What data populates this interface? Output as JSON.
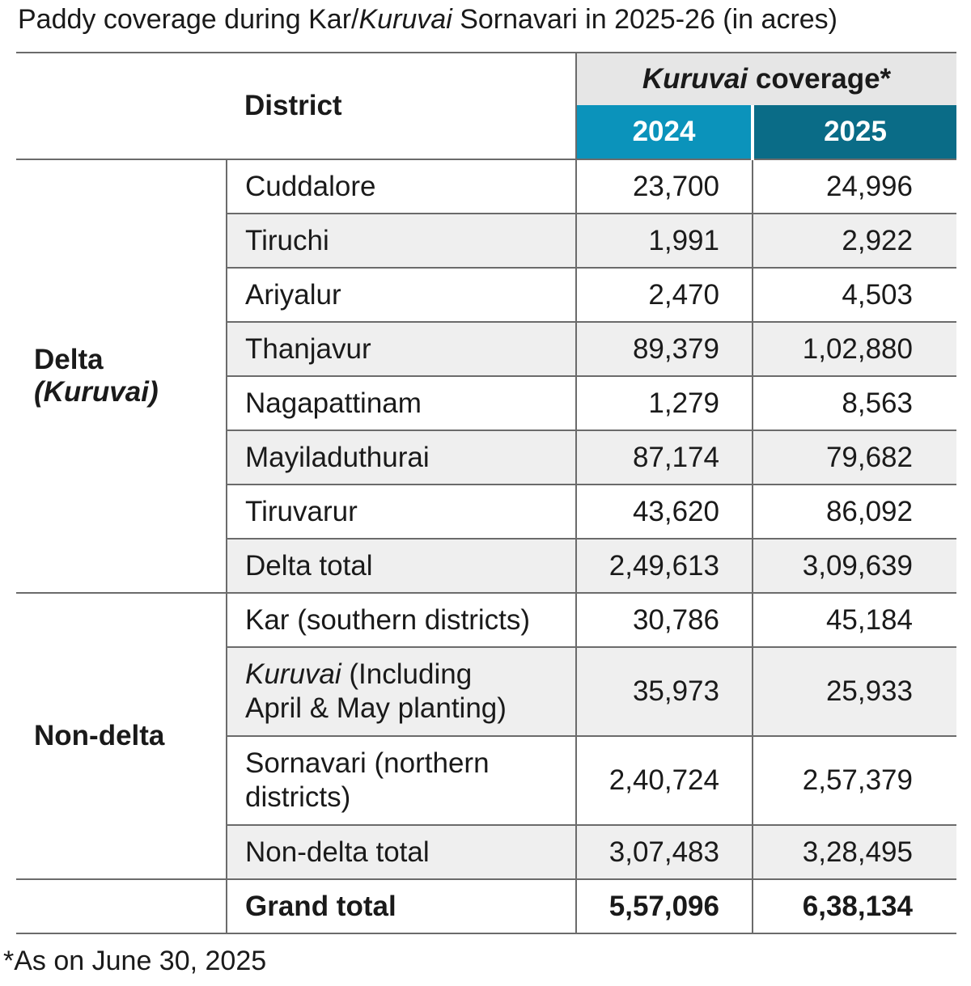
{
  "title": {
    "part1": "Paddy coverage during Kar/",
    "part2_italic": "Kuruvai",
    "part3": " Sornavari in 2025-26 (in acres)"
  },
  "header": {
    "district": "District",
    "coverage_italic": "Kuruvai",
    "coverage_rest": " coverage*",
    "year_2024": "2024",
    "year_2025": "2025"
  },
  "colors": {
    "year_2024_bg": "#0b93bb",
    "year_2025_bg": "#0a6c87",
    "header_bg": "#e6e6e6",
    "zebra": "#efefef"
  },
  "groups": {
    "delta_label": "Delta",
    "delta_sub_italic": "(Kuruvai)",
    "nondelta_label": "Non-delta"
  },
  "footnote": "*As on June 30, 2025",
  "chart_data": {
    "type": "table",
    "title": "Paddy coverage during Kar/Kuruvai Sornavari in 2025-26 (in acres)",
    "columns": [
      "District",
      "2024",
      "2025"
    ],
    "column_group": "Kuruvai coverage*",
    "rows": [
      {
        "group": "Delta (Kuruvai)",
        "name": "Cuddalore",
        "v2024": "23,700",
        "v2025": "24,996"
      },
      {
        "group": "Delta (Kuruvai)",
        "name": "Tiruchi",
        "v2024": "1,991",
        "v2025": "2,922"
      },
      {
        "group": "Delta (Kuruvai)",
        "name": "Ariyalur",
        "v2024": "2,470",
        "v2025": "4,503"
      },
      {
        "group": "Delta (Kuruvai)",
        "name": "Thanjavur",
        "v2024": "89,379",
        "v2025": "1,02,880"
      },
      {
        "group": "Delta (Kuruvai)",
        "name": "Nagapattinam",
        "v2024": "1,279",
        "v2025": "8,563"
      },
      {
        "group": "Delta (Kuruvai)",
        "name": "Mayiladuthurai",
        "v2024": "87,174",
        "v2025": "79,682"
      },
      {
        "group": "Delta (Kuruvai)",
        "name": "Tiruvarur",
        "v2024": "43,620",
        "v2025": "86,092"
      },
      {
        "group": "Delta (Kuruvai)",
        "name": "Delta total",
        "v2024": "2,49,613",
        "v2025": "3,09,639"
      },
      {
        "group": "Non-delta",
        "name": "Kar (southern districts)",
        "v2024": "30,786",
        "v2025": "45,184"
      },
      {
        "group": "Non-delta",
        "name_italic": "Kuruvai",
        "name_line1_rest": " (Including",
        "name_line2": "April & May planting)",
        "v2024": "35,973",
        "v2025": "25,933"
      },
      {
        "group": "Non-delta",
        "name_line1": "Sornavari (northern",
        "name_line2": "districts)",
        "v2024": "2,40,724",
        "v2025": "2,57,379"
      },
      {
        "group": "Non-delta",
        "name": "Non-delta total",
        "v2024": "3,07,483",
        "v2025": "3,28,495"
      },
      {
        "group": "",
        "name": "Grand total",
        "v2024": "5,57,096",
        "v2025": "6,38,134"
      }
    ]
  }
}
